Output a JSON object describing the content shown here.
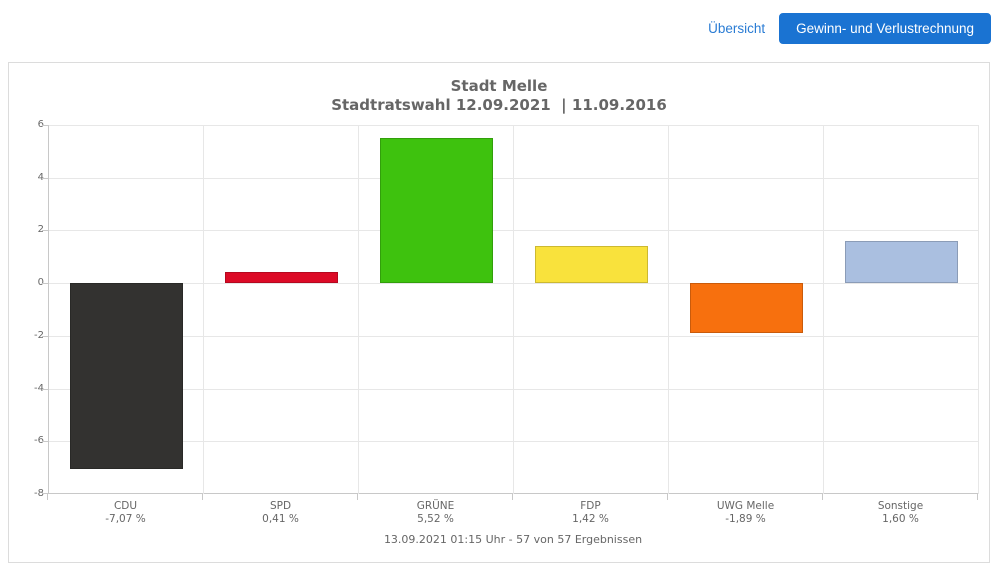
{
  "header": {
    "overview_link": "Übersicht",
    "active_button": "Gewinn- und Verlustrechnung",
    "link_color": "#2a7cd4",
    "button_bg": "#1a73d2",
    "button_text_color": "#ffffff"
  },
  "chart_data": {
    "type": "bar",
    "title": "Stadt Melle",
    "subtitle": "Stadtratswahl 12.09.2021  | 11.09.2016",
    "categories": [
      "CDU",
      "SPD",
      "GRÜNE",
      "FDP",
      "UWG Melle",
      "Sonstige"
    ],
    "values": [
      -7.07,
      0.41,
      5.52,
      1.42,
      -1.89,
      1.6
    ],
    "value_labels": [
      "-7,07 %",
      "0,41 %",
      "5,52 %",
      "1,42 %",
      "-1,89 %",
      "1,60 %"
    ],
    "bar_colors": [
      "#333230",
      "#dc0a26",
      "#3ec20e",
      "#f9e23c",
      "#f7700e",
      "#aabfe0"
    ],
    "ylabel": "",
    "xlabel": "",
    "ylim": [
      -8,
      6
    ],
    "yticks": [
      6,
      4,
      2,
      0,
      -2,
      -4,
      -6,
      -8
    ],
    "grid": true,
    "legend": "none",
    "footer": "13.09.2021 01:15 Uhr - 57 von 57 Ergebnissen"
  },
  "colors": {
    "grid_line": "#e7e7e7",
    "axis_line": "#c8c8c8",
    "chart_text": "#666666",
    "card_border": "#dcdcdc"
  }
}
